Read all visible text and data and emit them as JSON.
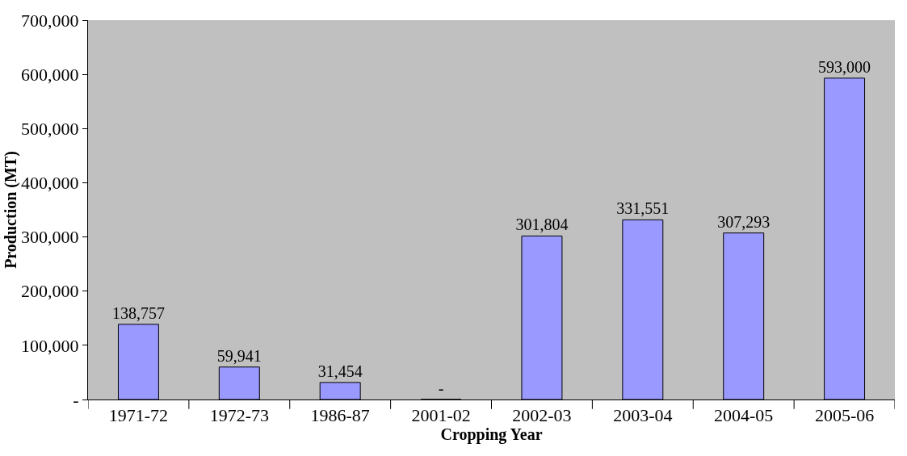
{
  "chart_data": {
    "type": "bar",
    "xlabel": "Cropping Year",
    "ylabel": "Production (MT)",
    "categories": [
      "1971-72",
      "1972-73",
      "1986-87",
      "2001-02",
      "2002-03",
      "2003-04",
      "2004-05",
      "2005-06"
    ],
    "values": [
      138757,
      59941,
      31454,
      0,
      301804,
      331551,
      307293,
      593000
    ],
    "value_labels": [
      "138,757",
      "59,941",
      "31,454",
      "-",
      "301,804",
      "331,551",
      "307,293",
      "593,000"
    ],
    "color": "#9999ff",
    "ylim": [
      0,
      700000
    ],
    "yticks": [
      {
        "value": 0,
        "label": "-"
      },
      {
        "value": 100000,
        "label": "100,000"
      },
      {
        "value": 200000,
        "label": "200,000"
      },
      {
        "value": 300000,
        "label": "300,000"
      },
      {
        "value": 400000,
        "label": "400,000"
      },
      {
        "value": 500000,
        "label": "500,000"
      },
      {
        "value": 600000,
        "label": "600,000"
      },
      {
        "value": 700000,
        "label": "700,000"
      }
    ],
    "grid": false
  }
}
